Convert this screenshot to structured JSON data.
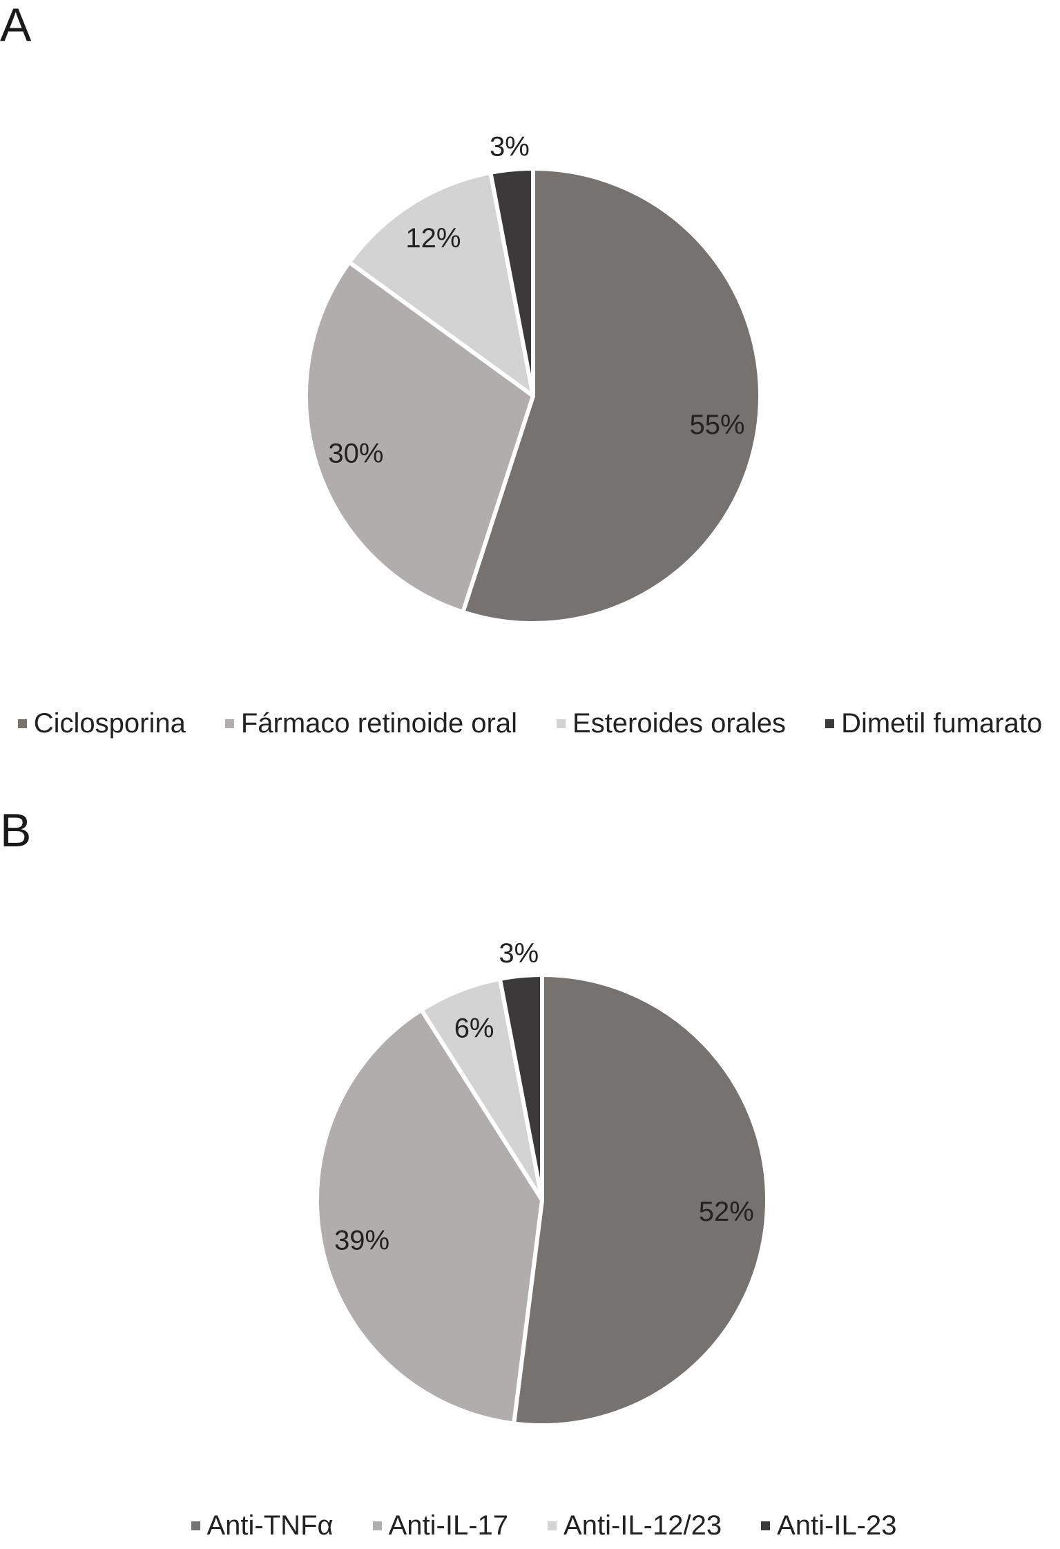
{
  "chart_data": [
    {
      "type": "pie",
      "panel_label": "A",
      "categories": [
        "Ciclosporina",
        "Fármaco retinoide oral",
        "Esteroides orales",
        "Dimetil fumarato"
      ],
      "values": [
        55,
        30,
        12,
        3
      ],
      "data_labels": [
        "55%",
        "30%",
        "12%",
        "3%"
      ],
      "colors": [
        "#767270",
        "#b0adac",
        "#d4d3d3",
        "#3b393a"
      ],
      "legend": "bottom"
    },
    {
      "type": "pie",
      "panel_label": "B",
      "categories": [
        "Anti-TNFα",
        "Anti-IL-17",
        "Anti-IL-12/23",
        "Anti-IL-23"
      ],
      "values": [
        52,
        39,
        6,
        3
      ],
      "data_labels": [
        "52%",
        "39%",
        "6%",
        "3%"
      ],
      "colors": [
        "#767270",
        "#b0adac",
        "#d4d3d3",
        "#3b393a"
      ],
      "legend": "bottom"
    }
  ]
}
